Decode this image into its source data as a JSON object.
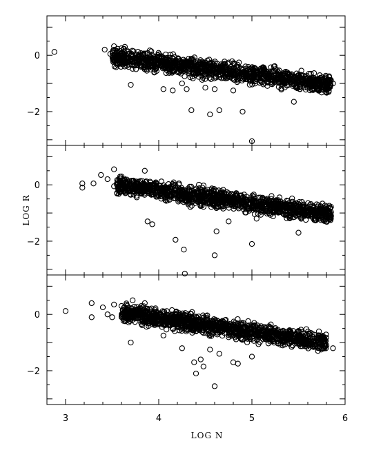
{
  "chart_data": {
    "type": "scatter",
    "title": "",
    "xlabel": "LOG N",
    "ylabel": "LOG R",
    "xlim": [
      2.8,
      6.0
    ],
    "x_ticks": [
      3,
      4,
      5,
      6
    ],
    "x_tick_labels": [
      "3",
      "4",
      "5",
      "6"
    ],
    "y_tick_labels": [
      "0",
      "−2"
    ],
    "panels": [
      {
        "ylim": [
          -3.2,
          1.4
        ],
        "y_ticks": [
          0,
          -2
        ],
        "band": {
          "x_start": 3.5,
          "x_end": 5.85,
          "y_start": -0.05,
          "y_end": -1.05,
          "spread": 0.38,
          "count": 1300
        },
        "points": [
          {
            "x": 2.88,
            "y": 0.12
          },
          {
            "x": 3.42,
            "y": 0.2
          },
          {
            "x": 3.48,
            "y": 0.05
          },
          {
            "x": 3.52,
            "y": 0.32
          },
          {
            "x": 3.55,
            "y": -0.15
          },
          {
            "x": 3.6,
            "y": 0.25
          },
          {
            "x": 3.7,
            "y": -1.05
          },
          {
            "x": 4.05,
            "y": -1.2
          },
          {
            "x": 4.15,
            "y": -1.25
          },
          {
            "x": 4.25,
            "y": -1.0
          },
          {
            "x": 4.3,
            "y": -1.2
          },
          {
            "x": 4.35,
            "y": -1.95
          },
          {
            "x": 4.5,
            "y": -1.15
          },
          {
            "x": 4.55,
            "y": -2.1
          },
          {
            "x": 4.6,
            "y": -1.2
          },
          {
            "x": 4.65,
            "y": -1.95
          },
          {
            "x": 4.8,
            "y": -1.25
          },
          {
            "x": 4.9,
            "y": -2.0
          },
          {
            "x": 5.0,
            "y": -3.05
          },
          {
            "x": 5.45,
            "y": -1.65
          },
          {
            "x": 5.75,
            "y": -1.2
          },
          {
            "x": 5.83,
            "y": -1.15
          },
          {
            "x": 5.87,
            "y": -1.0
          }
        ]
      },
      {
        "ylim": [
          -3.2,
          1.4
        ],
        "y_ticks": [
          0,
          -2
        ],
        "band": {
          "x_start": 3.55,
          "x_end": 5.85,
          "y_start": 0.0,
          "y_end": -1.05,
          "spread": 0.38,
          "count": 1300
        },
        "points": [
          {
            "x": 3.18,
            "y": 0.05
          },
          {
            "x": 3.18,
            "y": -0.1
          },
          {
            "x": 3.3,
            "y": 0.05
          },
          {
            "x": 3.38,
            "y": 0.35
          },
          {
            "x": 3.45,
            "y": 0.2
          },
          {
            "x": 3.52,
            "y": -0.05
          },
          {
            "x": 3.52,
            "y": 0.55
          },
          {
            "x": 3.6,
            "y": 0.3
          },
          {
            "x": 3.85,
            "y": 0.5
          },
          {
            "x": 3.88,
            "y": -1.3
          },
          {
            "x": 3.93,
            "y": -1.4
          },
          {
            "x": 4.18,
            "y": -1.95
          },
          {
            "x": 4.27,
            "y": -2.3
          },
          {
            "x": 4.28,
            "y": -3.15
          },
          {
            "x": 4.6,
            "y": -2.5
          },
          {
            "x": 4.62,
            "y": -1.65
          },
          {
            "x": 4.75,
            "y": -1.3
          },
          {
            "x": 5.0,
            "y": -2.1
          },
          {
            "x": 5.05,
            "y": -1.2
          },
          {
            "x": 5.5,
            "y": -1.7
          },
          {
            "x": 5.8,
            "y": -1.1
          },
          {
            "x": 5.85,
            "y": -1.1
          }
        ]
      },
      {
        "ylim": [
          -3.2,
          1.4
        ],
        "y_ticks": [
          0,
          -2
        ],
        "band": {
          "x_start": 3.6,
          "x_end": 5.8,
          "y_start": 0.05,
          "y_end": -1.0,
          "spread": 0.38,
          "count": 1300
        },
        "points": [
          {
            "x": 3.0,
            "y": 0.12
          },
          {
            "x": 3.28,
            "y": 0.4
          },
          {
            "x": 3.28,
            "y": -0.1
          },
          {
            "x": 3.4,
            "y": 0.25
          },
          {
            "x": 3.45,
            "y": 0.0
          },
          {
            "x": 3.5,
            "y": -0.1
          },
          {
            "x": 3.52,
            "y": 0.35
          },
          {
            "x": 3.6,
            "y": 0.3
          },
          {
            "x": 3.7,
            "y": -1.0
          },
          {
            "x": 3.72,
            "y": 0.5
          },
          {
            "x": 3.85,
            "y": 0.4
          },
          {
            "x": 4.05,
            "y": -0.75
          },
          {
            "x": 4.25,
            "y": -1.2
          },
          {
            "x": 4.38,
            "y": -1.7
          },
          {
            "x": 4.4,
            "y": -2.1
          },
          {
            "x": 4.45,
            "y": -1.6
          },
          {
            "x": 4.48,
            "y": -1.85
          },
          {
            "x": 4.55,
            "y": -1.25
          },
          {
            "x": 4.6,
            "y": -2.55
          },
          {
            "x": 4.65,
            "y": -1.4
          },
          {
            "x": 4.8,
            "y": -1.7
          },
          {
            "x": 4.85,
            "y": -1.75
          },
          {
            "x": 5.0,
            "y": -1.5
          },
          {
            "x": 5.72,
            "y": -0.85
          },
          {
            "x": 5.8,
            "y": -1.1
          },
          {
            "x": 5.87,
            "y": -1.2
          }
        ]
      }
    ],
    "grid": false,
    "legend": "none"
  }
}
